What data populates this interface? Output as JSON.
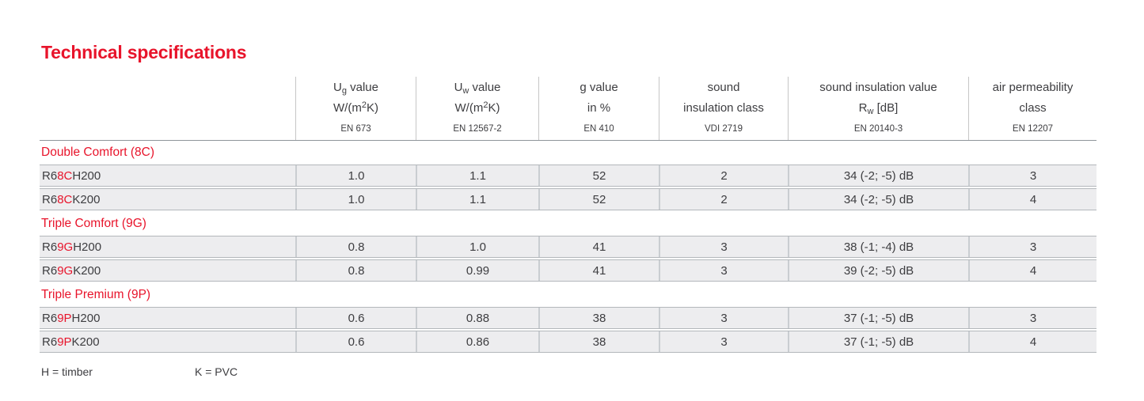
{
  "page": {
    "title": "Technical specifications"
  },
  "colors": {
    "accent_red": "#e8142b",
    "body_text": "#3d3d40",
    "row_background": "#ededef",
    "row_border": "#b3b7bb",
    "cell_divider": "#c9cdd1",
    "header_divider": "#c6c6c6",
    "header_bottom_rule": "#8f959a"
  },
  "table": {
    "columns": [
      {
        "line1": [
          [
            "U",
            ""
          ],
          [
            "g",
            "sub"
          ],
          [
            " value",
            ""
          ]
        ],
        "line2": [
          [
            "W/(m",
            ""
          ],
          [
            "2",
            "sup"
          ],
          [
            "K)",
            ""
          ]
        ],
        "standard": "EN 673"
      },
      {
        "line1": [
          [
            "U",
            ""
          ],
          [
            "w",
            "sub"
          ],
          [
            " value",
            ""
          ]
        ],
        "line2": [
          [
            "W/(m",
            ""
          ],
          [
            "2",
            "sup"
          ],
          [
            "K)",
            ""
          ]
        ],
        "standard": "EN 12567-2"
      },
      {
        "line1": [
          [
            "g value",
            ""
          ]
        ],
        "line2": [
          [
            "in %",
            ""
          ]
        ],
        "standard": "EN 410"
      },
      {
        "line1": [
          [
            "sound",
            ""
          ]
        ],
        "line2": [
          [
            "insulation class",
            ""
          ]
        ],
        "standard": "VDI 2719"
      },
      {
        "line1": [
          [
            "sound insulation value",
            ""
          ]
        ],
        "line2": [
          [
            "R",
            ""
          ],
          [
            "w",
            "sub"
          ],
          [
            " [dB]",
            ""
          ]
        ],
        "standard": "EN 20140-3"
      },
      {
        "line1": [
          [
            "air permeability",
            ""
          ]
        ],
        "line2": [
          [
            "class",
            ""
          ]
        ],
        "standard": "EN 12207"
      }
    ],
    "sections": [
      {
        "heading": "Double Comfort (8C)",
        "rows": [
          {
            "label": [
              [
                "R6",
                ""
              ],
              [
                "8C",
                "red"
              ],
              [
                " H200",
                ""
              ]
            ],
            "values": [
              "1.0",
              "1.1",
              "52",
              "2",
              "34 (-2; -5) dB",
              "3"
            ]
          },
          {
            "label": [
              [
                "R6",
                ""
              ],
              [
                "8C",
                "red"
              ],
              [
                " K200",
                ""
              ]
            ],
            "values": [
              "1.0",
              "1.1",
              "52",
              "2",
              "34 (-2; -5) dB",
              "4"
            ]
          }
        ]
      },
      {
        "heading": "Triple Comfort (9G)",
        "rows": [
          {
            "label": [
              [
                "R6",
                ""
              ],
              [
                "9G",
                "red"
              ],
              [
                " H200",
                ""
              ]
            ],
            "values": [
              "0.8",
              "1.0",
              "41",
              "3",
              "38 (-1; -4) dB",
              "3"
            ]
          },
          {
            "label": [
              [
                "R6",
                ""
              ],
              [
                "9G",
                "red"
              ],
              [
                " K200",
                ""
              ]
            ],
            "values": [
              "0.8",
              "0.99",
              "41",
              "3",
              "39 (-2; -5) dB",
              "4"
            ]
          }
        ]
      },
      {
        "heading": "Triple Premium (9P)",
        "rows": [
          {
            "label": [
              [
                "R6",
                ""
              ],
              [
                "9P",
                "red"
              ],
              [
                " H200",
                ""
              ]
            ],
            "values": [
              "0.6",
              "0.88",
              "38",
              "3",
              "37 (-1; -5) dB",
              "3"
            ]
          },
          {
            "label": [
              [
                "R6",
                ""
              ],
              [
                "9P",
                "red"
              ],
              [
                " K200",
                ""
              ]
            ],
            "values": [
              "0.6",
              "0.86",
              "38",
              "3",
              "37 (-1; -5) dB",
              "4"
            ]
          }
        ]
      }
    ]
  },
  "footnotes": [
    "H = timber",
    "K = PVC"
  ]
}
